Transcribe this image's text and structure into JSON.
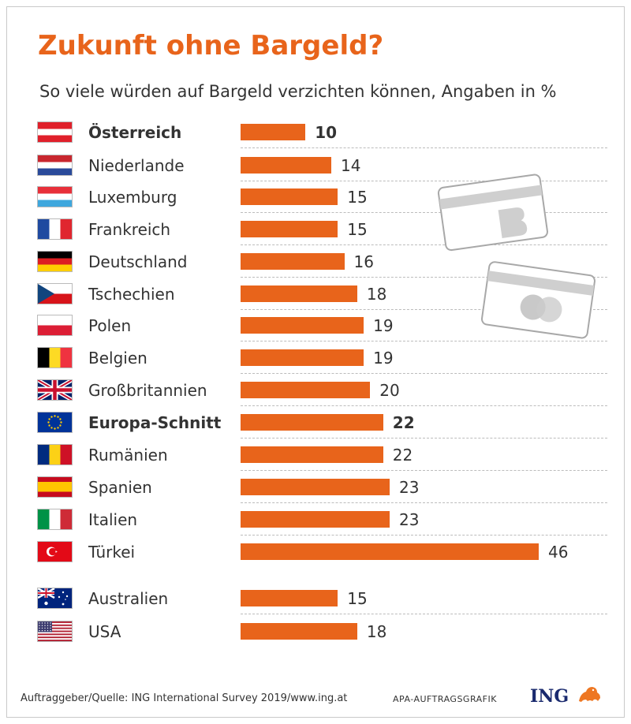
{
  "title": "Zukunft ohne Bargeld?",
  "subtitle": "So viele würden auf Bargeld verzichten können, Angaben in %",
  "footer": {
    "source": "Auftraggeber/Quelle: ING International Survey 2019/www.ing.at",
    "credit": "APA-AUFTRAGSGRAFIK",
    "logo_text": "ING"
  },
  "colors": {
    "bar": "#e8641b",
    "title": "#e8641b",
    "text": "#333333"
  },
  "chart_data": {
    "type": "bar",
    "orientation": "horizontal",
    "xlim": [
      0,
      50
    ],
    "categories": [
      "Österreich",
      "Niederlande",
      "Luxemburg",
      "Frankreich",
      "Deutschland",
      "Tschechien",
      "Polen",
      "Belgien",
      "Großbritannien",
      "Europa-Schnitt",
      "Rumänien",
      "Spanien",
      "Italien",
      "Türkei",
      "Australien",
      "USA"
    ],
    "values": [
      10,
      14,
      15,
      15,
      16,
      18,
      19,
      19,
      20,
      22,
      22,
      23,
      23,
      46,
      15,
      18
    ],
    "highlighted": [
      "Österreich",
      "Europa-Schnitt"
    ],
    "flags": [
      "austria-flag",
      "netherlands-flag",
      "luxembourg-flag",
      "france-flag",
      "germany-flag",
      "czechia-flag",
      "poland-flag",
      "belgium-flag",
      "uk-flag",
      "eu-flag",
      "romania-flag",
      "spain-flag",
      "italy-flag",
      "turkey-flag",
      "australia-flag",
      "usa-flag"
    ]
  }
}
